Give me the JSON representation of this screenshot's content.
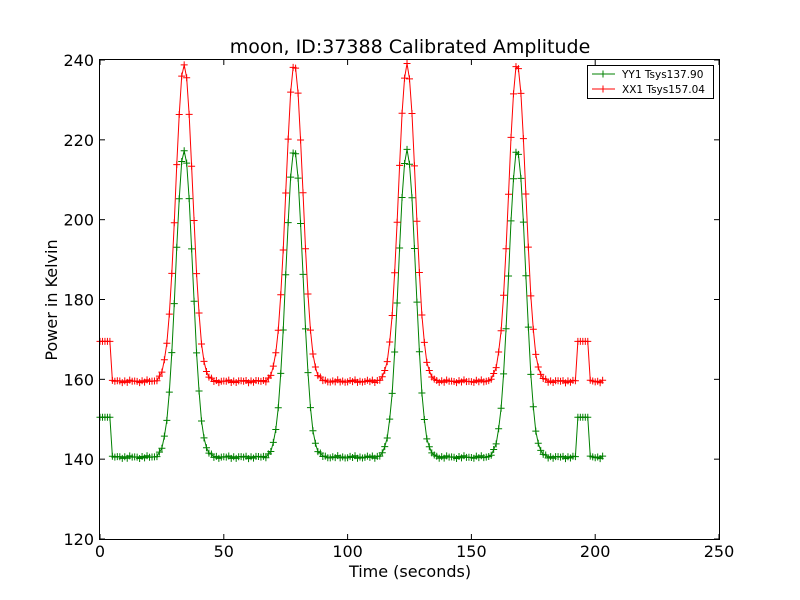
{
  "chart_data": {
    "type": "line",
    "title": "moon, ID:37388 Calibrated Amplitude",
    "xlabel": "Time (seconds)",
    "ylabel": "Power in Kelvin",
    "xlim": [
      0,
      250
    ],
    "ylim": [
      120,
      240
    ],
    "xticks": [
      "0",
      "50",
      "100",
      "150",
      "200",
      "250"
    ],
    "yticks": [
      "120",
      "140",
      "160",
      "180",
      "200",
      "220",
      "240"
    ],
    "grid": false,
    "legend_position": "top-right",
    "marker": "+",
    "series": [
      {
        "name": "YY1 Tsys137.90",
        "color": "#008000",
        "baseline": 140.5,
        "peak": 217.5,
        "offset_level": 150.5,
        "offset_ranges": [
          [
            0,
            4
          ],
          [
            193,
            197
          ]
        ],
        "peak_times": [
          34,
          78.5,
          124,
          168.5
        ],
        "peak_half_width": 7.5,
        "x_range": [
          0,
          203
        ]
      },
      {
        "name": "XX1 Tsys157.04",
        "color": "#ff0000",
        "baseline": 159.5,
        "peak": 239,
        "offset_level": 169.5,
        "offset_ranges": [
          [
            0,
            4
          ],
          [
            193,
            197
          ]
        ],
        "peak_times": [
          34,
          78.5,
          124,
          168.5
        ],
        "peak_half_width": 7.5,
        "x_range": [
          0,
          203
        ]
      }
    ]
  }
}
